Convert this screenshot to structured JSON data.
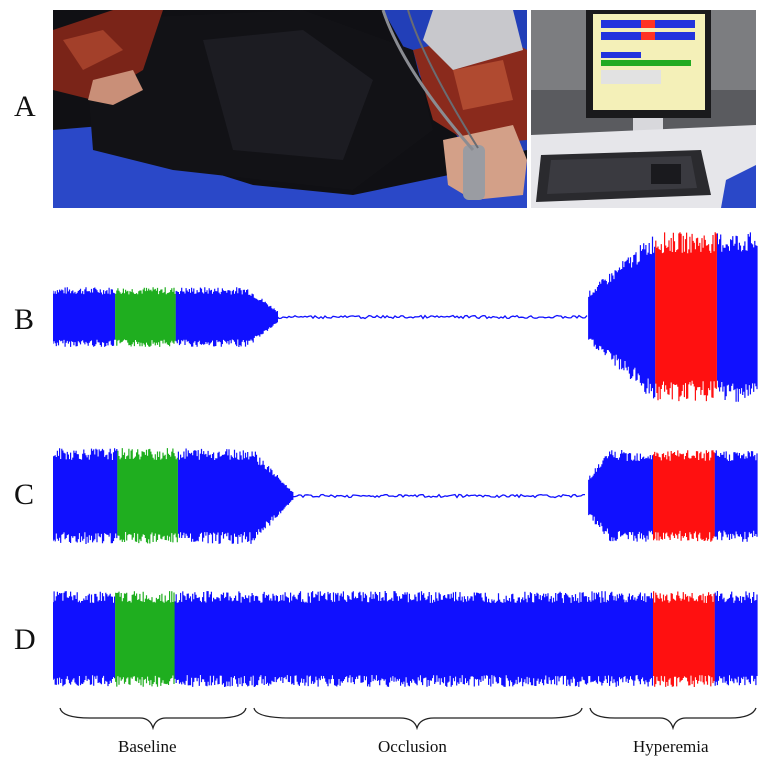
{
  "figure": {
    "panels": [
      {
        "id": "A",
        "type": "photo"
      },
      {
        "id": "B",
        "type": "waveform"
      },
      {
        "id": "C",
        "type": "waveform"
      },
      {
        "id": "D",
        "type": "waveform"
      }
    ],
    "phases": [
      "Baseline",
      "Occlusion",
      "Hyperemia"
    ]
  },
  "colors": {
    "signal": "#1010ff",
    "baseline_highlight": "#1fae1f",
    "hyperemia_highlight": "#ff1010",
    "background": "#ffffff"
  }
}
